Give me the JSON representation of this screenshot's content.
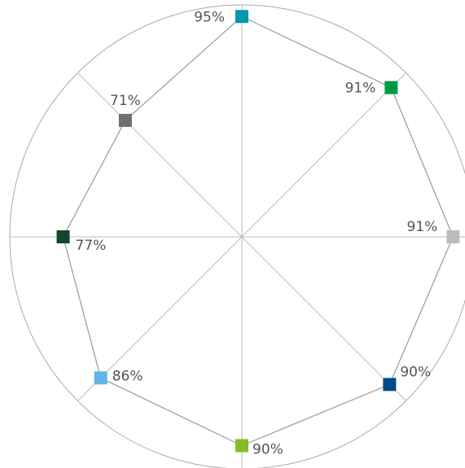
{
  "chart_data": {
    "type": "radar",
    "values": [
      95,
      91,
      91,
      90,
      90,
      86,
      77,
      71
    ],
    "value_labels": [
      "95%",
      "91%",
      "91%",
      "90%",
      "90%",
      "86%",
      "77%",
      "71%"
    ],
    "colors": [
      "#0097a9",
      "#009a44",
      "#bbbcbc",
      "#004b87",
      "#86bc25",
      "#62b5e5",
      "#12472a",
      "#6d6f73"
    ],
    "rlim": [
      0,
      100
    ]
  }
}
